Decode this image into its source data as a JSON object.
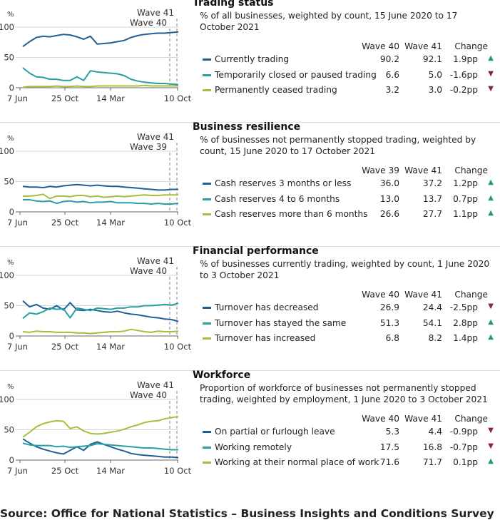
{
  "colors": {
    "dark_blue": "#206095",
    "teal": "#27a0a0",
    "olive": "#a8bd3a",
    "up": "#1b9e77",
    "down": "#861f5a"
  },
  "source": "Source: Office for National Statistics – Business Insights and Conditions Survey",
  "chart_data": [
    {
      "type": "line",
      "title": "Trading status",
      "subtitle": "% of all businesses, weighted by count, 15 June 2020 to 17 October 2021",
      "ylabel": "%",
      "ylim": [
        0,
        100
      ],
      "yticks": [
        "100",
        "50",
        "0"
      ],
      "xlabels": [
        "7 Jun",
        "25 Oct",
        "14 Mar",
        "10 Oct"
      ],
      "markers": [
        "Wave 41",
        "Wave 40"
      ],
      "columns": [
        "Wave 40",
        "Wave 41",
        "Change"
      ],
      "series": [
        {
          "name": "Currently trading",
          "color": "#206095",
          "w1": "90.2",
          "w2": "92.1",
          "change": "1.9pp",
          "dir": "up",
          "values": [
            68,
            76,
            83,
            85,
            84,
            86,
            88,
            87,
            84,
            80,
            85,
            72,
            73,
            74,
            76,
            78,
            83,
            86,
            88,
            89,
            90,
            90,
            91,
            92
          ]
        },
        {
          "name": "Temporarily closed or paused trading",
          "color": "#27a0a0",
          "w1": "6.6",
          "w2": "5.0",
          "change": "-1.6pp",
          "dir": "down",
          "values": [
            33,
            24,
            18,
            17,
            14,
            14,
            12,
            12,
            18,
            12,
            28,
            26,
            25,
            24,
            23,
            20,
            14,
            11,
            9,
            8,
            7,
            7,
            6,
            5
          ]
        },
        {
          "name": "Permanently ceased trading",
          "color": "#a8bd3a",
          "w1": "3.2",
          "w2": "3.0",
          "change": "-0.2pp",
          "dir": "down",
          "values": [
            1,
            2,
            2,
            2,
            2,
            3,
            2,
            2,
            3,
            2,
            2,
            3,
            3,
            3,
            3,
            3,
            3,
            3,
            4,
            3,
            3,
            3,
            3,
            3
          ]
        }
      ]
    },
    {
      "type": "line",
      "title": "Business resilience",
      "subtitle": "% of businesses not permanently stopped trading, weighted by count, 15 June 2020 to 17 October 2021",
      "ylabel": "%",
      "ylim": [
        0,
        100
      ],
      "yticks": [
        "100",
        "50",
        "0"
      ],
      "xlabels": [
        "7 Jun",
        "25 Oct",
        "14 Mar",
        "10 Oct"
      ],
      "markers": [
        "Wave 41",
        "Wave 39"
      ],
      "columns": [
        "Wave 39",
        "Wave 41",
        "Change"
      ],
      "series": [
        {
          "name": "Cash reserves 3 months or less",
          "color": "#206095",
          "w1": "36.0",
          "w2": "37.2",
          "change": "1.2pp",
          "dir": "up",
          "values": [
            42,
            41,
            41,
            40,
            42,
            41,
            43,
            44,
            45,
            44,
            43,
            44,
            43,
            42,
            42,
            41,
            40,
            39,
            38,
            37,
            36,
            36,
            37,
            37
          ]
        },
        {
          "name": "Cash reserves 4 to 6 months",
          "color": "#27a0a0",
          "w1": "13.0",
          "w2": "13.7",
          "change": "0.7pp",
          "dir": "up",
          "values": [
            20,
            20,
            18,
            17,
            18,
            14,
            17,
            18,
            16,
            17,
            15,
            16,
            16,
            17,
            15,
            15,
            15,
            14,
            14,
            13,
            14,
            13,
            13,
            14
          ]
        },
        {
          "name": "Cash reserves more than 6 months",
          "color": "#a8bd3a",
          "w1": "26.6",
          "w2": "27.7",
          "change": "1.1pp",
          "dir": "up",
          "values": [
            26,
            26,
            27,
            29,
            22,
            26,
            26,
            25,
            27,
            27,
            25,
            26,
            24,
            25,
            26,
            25,
            26,
            27,
            28,
            27,
            27,
            28,
            28,
            28
          ]
        }
      ]
    },
    {
      "type": "line",
      "title": "Financial performance",
      "subtitle": "% of businesses currently trading, weighted by count, 1 June 2020 to 3 October 2021",
      "ylabel": "%",
      "ylim": [
        0,
        100
      ],
      "yticks": [
        "100",
        "50",
        "0"
      ],
      "xlabels": [
        "7 Jun",
        "25 Oct",
        "14 Mar",
        "10 Oct"
      ],
      "markers": [
        "Wave 41",
        "Wave 40"
      ],
      "columns": [
        "Wave 40",
        "Wave 41",
        "Change"
      ],
      "series": [
        {
          "name": "Turnover has decreased",
          "color": "#206095",
          "w1": "26.9",
          "w2": "24.4",
          "change": "-2.5pp",
          "dir": "down",
          "values": [
            58,
            48,
            52,
            46,
            44,
            50,
            43,
            55,
            43,
            42,
            44,
            42,
            40,
            39,
            41,
            38,
            36,
            35,
            33,
            31,
            30,
            28,
            27,
            24
          ]
        },
        {
          "name": "Turnover has stayed the same",
          "color": "#27a0a0",
          "w1": "51.3",
          "w2": "54.1",
          "change": "2.8pp",
          "dir": "up",
          "values": [
            29,
            38,
            36,
            40,
            46,
            44,
            45,
            30,
            46,
            44,
            42,
            46,
            45,
            44,
            46,
            46,
            48,
            48,
            50,
            50,
            51,
            52,
            51,
            54
          ]
        },
        {
          "name": "Turnover has increased",
          "color": "#a8bd3a",
          "w1": "6.8",
          "w2": "8.2",
          "change": "1.4pp",
          "dir": "up",
          "values": [
            7,
            6,
            8,
            7,
            7,
            6,
            6,
            6,
            5,
            5,
            4,
            5,
            6,
            7,
            7,
            8,
            11,
            9,
            7,
            6,
            8,
            7,
            7,
            8
          ]
        }
      ]
    },
    {
      "type": "line",
      "title": "Workforce",
      "subtitle": "Proportion of workforce of businesses not permanently stopped trading, weighted by employment, 1 June 2020 to 3 October 2021",
      "ylabel": "%",
      "ylim": [
        0,
        100
      ],
      "yticks": [
        "100",
        "50",
        "0"
      ],
      "xlabels": [
        "7 Jun",
        "25 Oct",
        "14 Mar",
        "10 Oct"
      ],
      "markers": [
        "Wave 41",
        "Wave 40"
      ],
      "columns": [
        "Wave 40",
        "Wave 41",
        "Change"
      ],
      "series": [
        {
          "name": "On partial or furlough leave",
          "color": "#206095",
          "w1": "5.3",
          "w2": "4.4",
          "change": "-0.9pp",
          "dir": "down",
          "values": [
            35,
            28,
            22,
            18,
            15,
            12,
            10,
            16,
            22,
            16,
            26,
            30,
            26,
            22,
            18,
            15,
            11,
            9,
            8,
            7,
            6,
            5,
            5,
            4
          ]
        },
        {
          "name": "Working remotely",
          "color": "#27a0a0",
          "w1": "17.5",
          "w2": "16.8",
          "change": "-0.7pp",
          "dir": "down",
          "values": [
            28,
            25,
            24,
            24,
            24,
            22,
            23,
            21,
            22,
            23,
            24,
            27,
            26,
            25,
            24,
            23,
            22,
            21,
            20,
            20,
            19,
            18,
            17,
            17
          ]
        },
        {
          "name": "Working at their normal place of work",
          "color": "#a8bd3a",
          "w1": "71.6",
          "w2": "71.7",
          "change": "0.1pp",
          "dir": "up",
          "values": [
            38,
            46,
            55,
            60,
            63,
            65,
            64,
            52,
            55,
            48,
            44,
            43,
            44,
            46,
            48,
            51,
            55,
            58,
            62,
            64,
            65,
            68,
            70,
            72
          ]
        }
      ]
    }
  ]
}
